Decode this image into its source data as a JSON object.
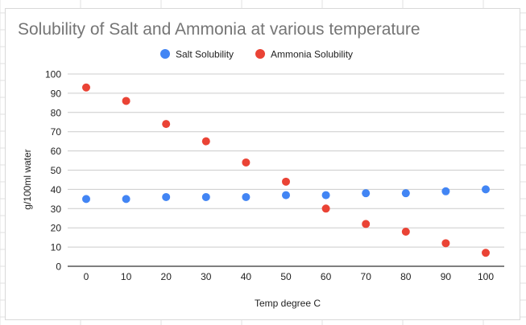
{
  "chart_data": {
    "type": "scatter",
    "title": "Solubility of Salt and Ammonia at various temperature",
    "xlabel": "Temp degree C",
    "ylabel": "g/100ml water",
    "x": [
      0,
      10,
      20,
      30,
      40,
      50,
      60,
      70,
      80,
      90,
      100
    ],
    "x_ticks": [
      "0",
      "10",
      "20",
      "30",
      "40",
      "50",
      "60",
      "70",
      "80",
      "90",
      "100"
    ],
    "y_ticks": [
      "0",
      "10",
      "20",
      "30",
      "40",
      "50",
      "60",
      "70",
      "80",
      "90",
      "100"
    ],
    "xlim": [
      0,
      100
    ],
    "ylim": [
      0,
      100
    ],
    "grid": true,
    "legend_position": "top",
    "series": [
      {
        "name": "Salt Solubility",
        "color": "#4285f4",
        "values": [
          35,
          35,
          36,
          36,
          36,
          37,
          37,
          38,
          38,
          39,
          40
        ]
      },
      {
        "name": "Ammonia Solubility",
        "color": "#ea4335",
        "values": [
          93,
          86,
          74,
          65,
          54,
          44,
          30,
          22,
          18,
          12,
          7
        ]
      }
    ]
  }
}
